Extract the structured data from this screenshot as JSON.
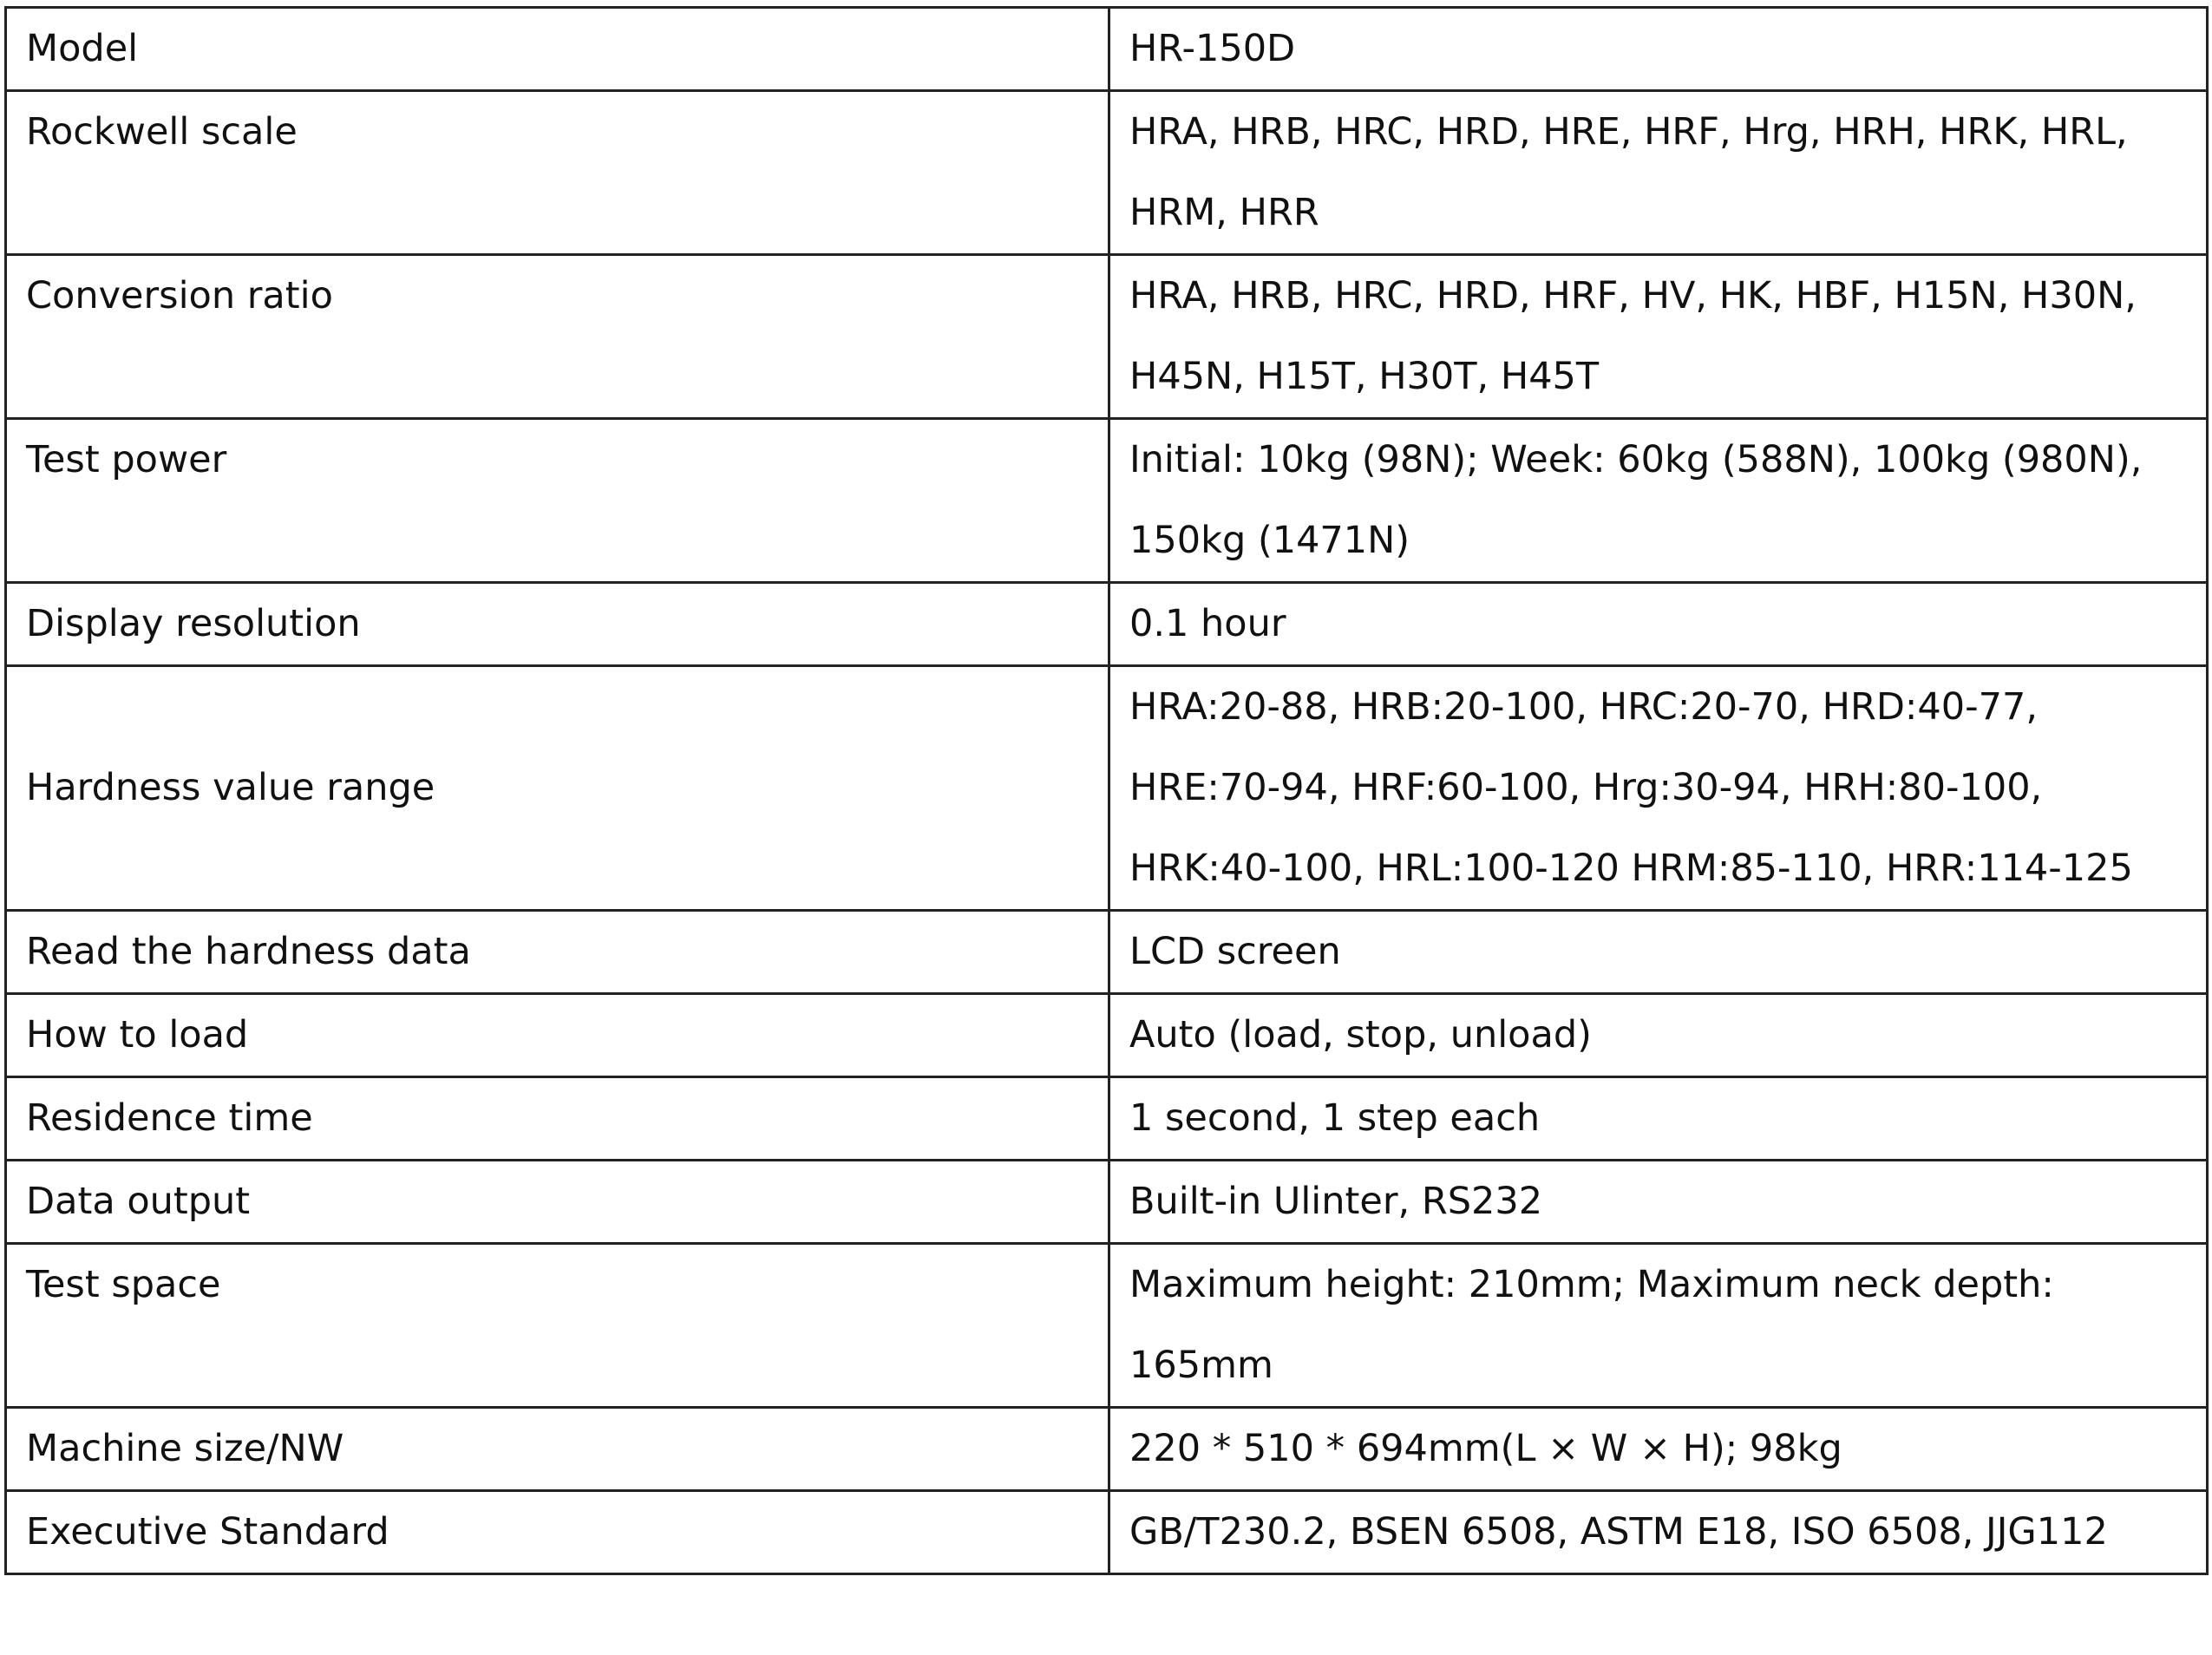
{
  "table": {
    "rows": [
      [
        "Model",
        "HR-150D"
      ],
      [
        "Rockwell scale",
        "HRA, HRB, HRC, HRD, HRE, HRF, Hrg, HRH, HRK, HRL, HRM, HRR"
      ],
      [
        "Conversion ratio",
        "HRA, HRB, HRC, HRD, HRF, HV, HK, HBF, H15N, H30N, H45N, H15T, H30T, H45T"
      ],
      [
        "Test power",
        "Initial: 10kg (98N); Week: 60kg (588N), 100kg (980N), 150kg (1471N)"
      ],
      [
        "Display resolution",
        "0.1 hour"
      ],
      [
        "Hardness value range",
        "HRA:20-88, HRB:20-100, HRC:20-70, HRD:40-77, HRE:70-94, HRF:60-100, Hrg:30-94, HRH:80-100, HRK:40-100, HRL:100-120 HRM:85-110, HRR:114-125"
      ],
      [
        "Read the hardness data",
        "LCD screen"
      ],
      [
        "How to load",
        "Auto (load, stop, unload)"
      ],
      [
        "Residence time",
        "1 second, 1 step each"
      ],
      [
        "Data output",
        "Built-in Ulinter, RS232"
      ],
      [
        "Test space",
        "Maximum height: 210mm; Maximum neck depth: 165mm"
      ],
      [
        "Machine size/NW",
        "220 * 510 * 694mm(L × W × H); 98kg"
      ],
      [
        "Executive Standard",
        "GB/T230.2, BSEN 6508, ASTM E18, ISO 6508, JJG112"
      ]
    ]
  }
}
